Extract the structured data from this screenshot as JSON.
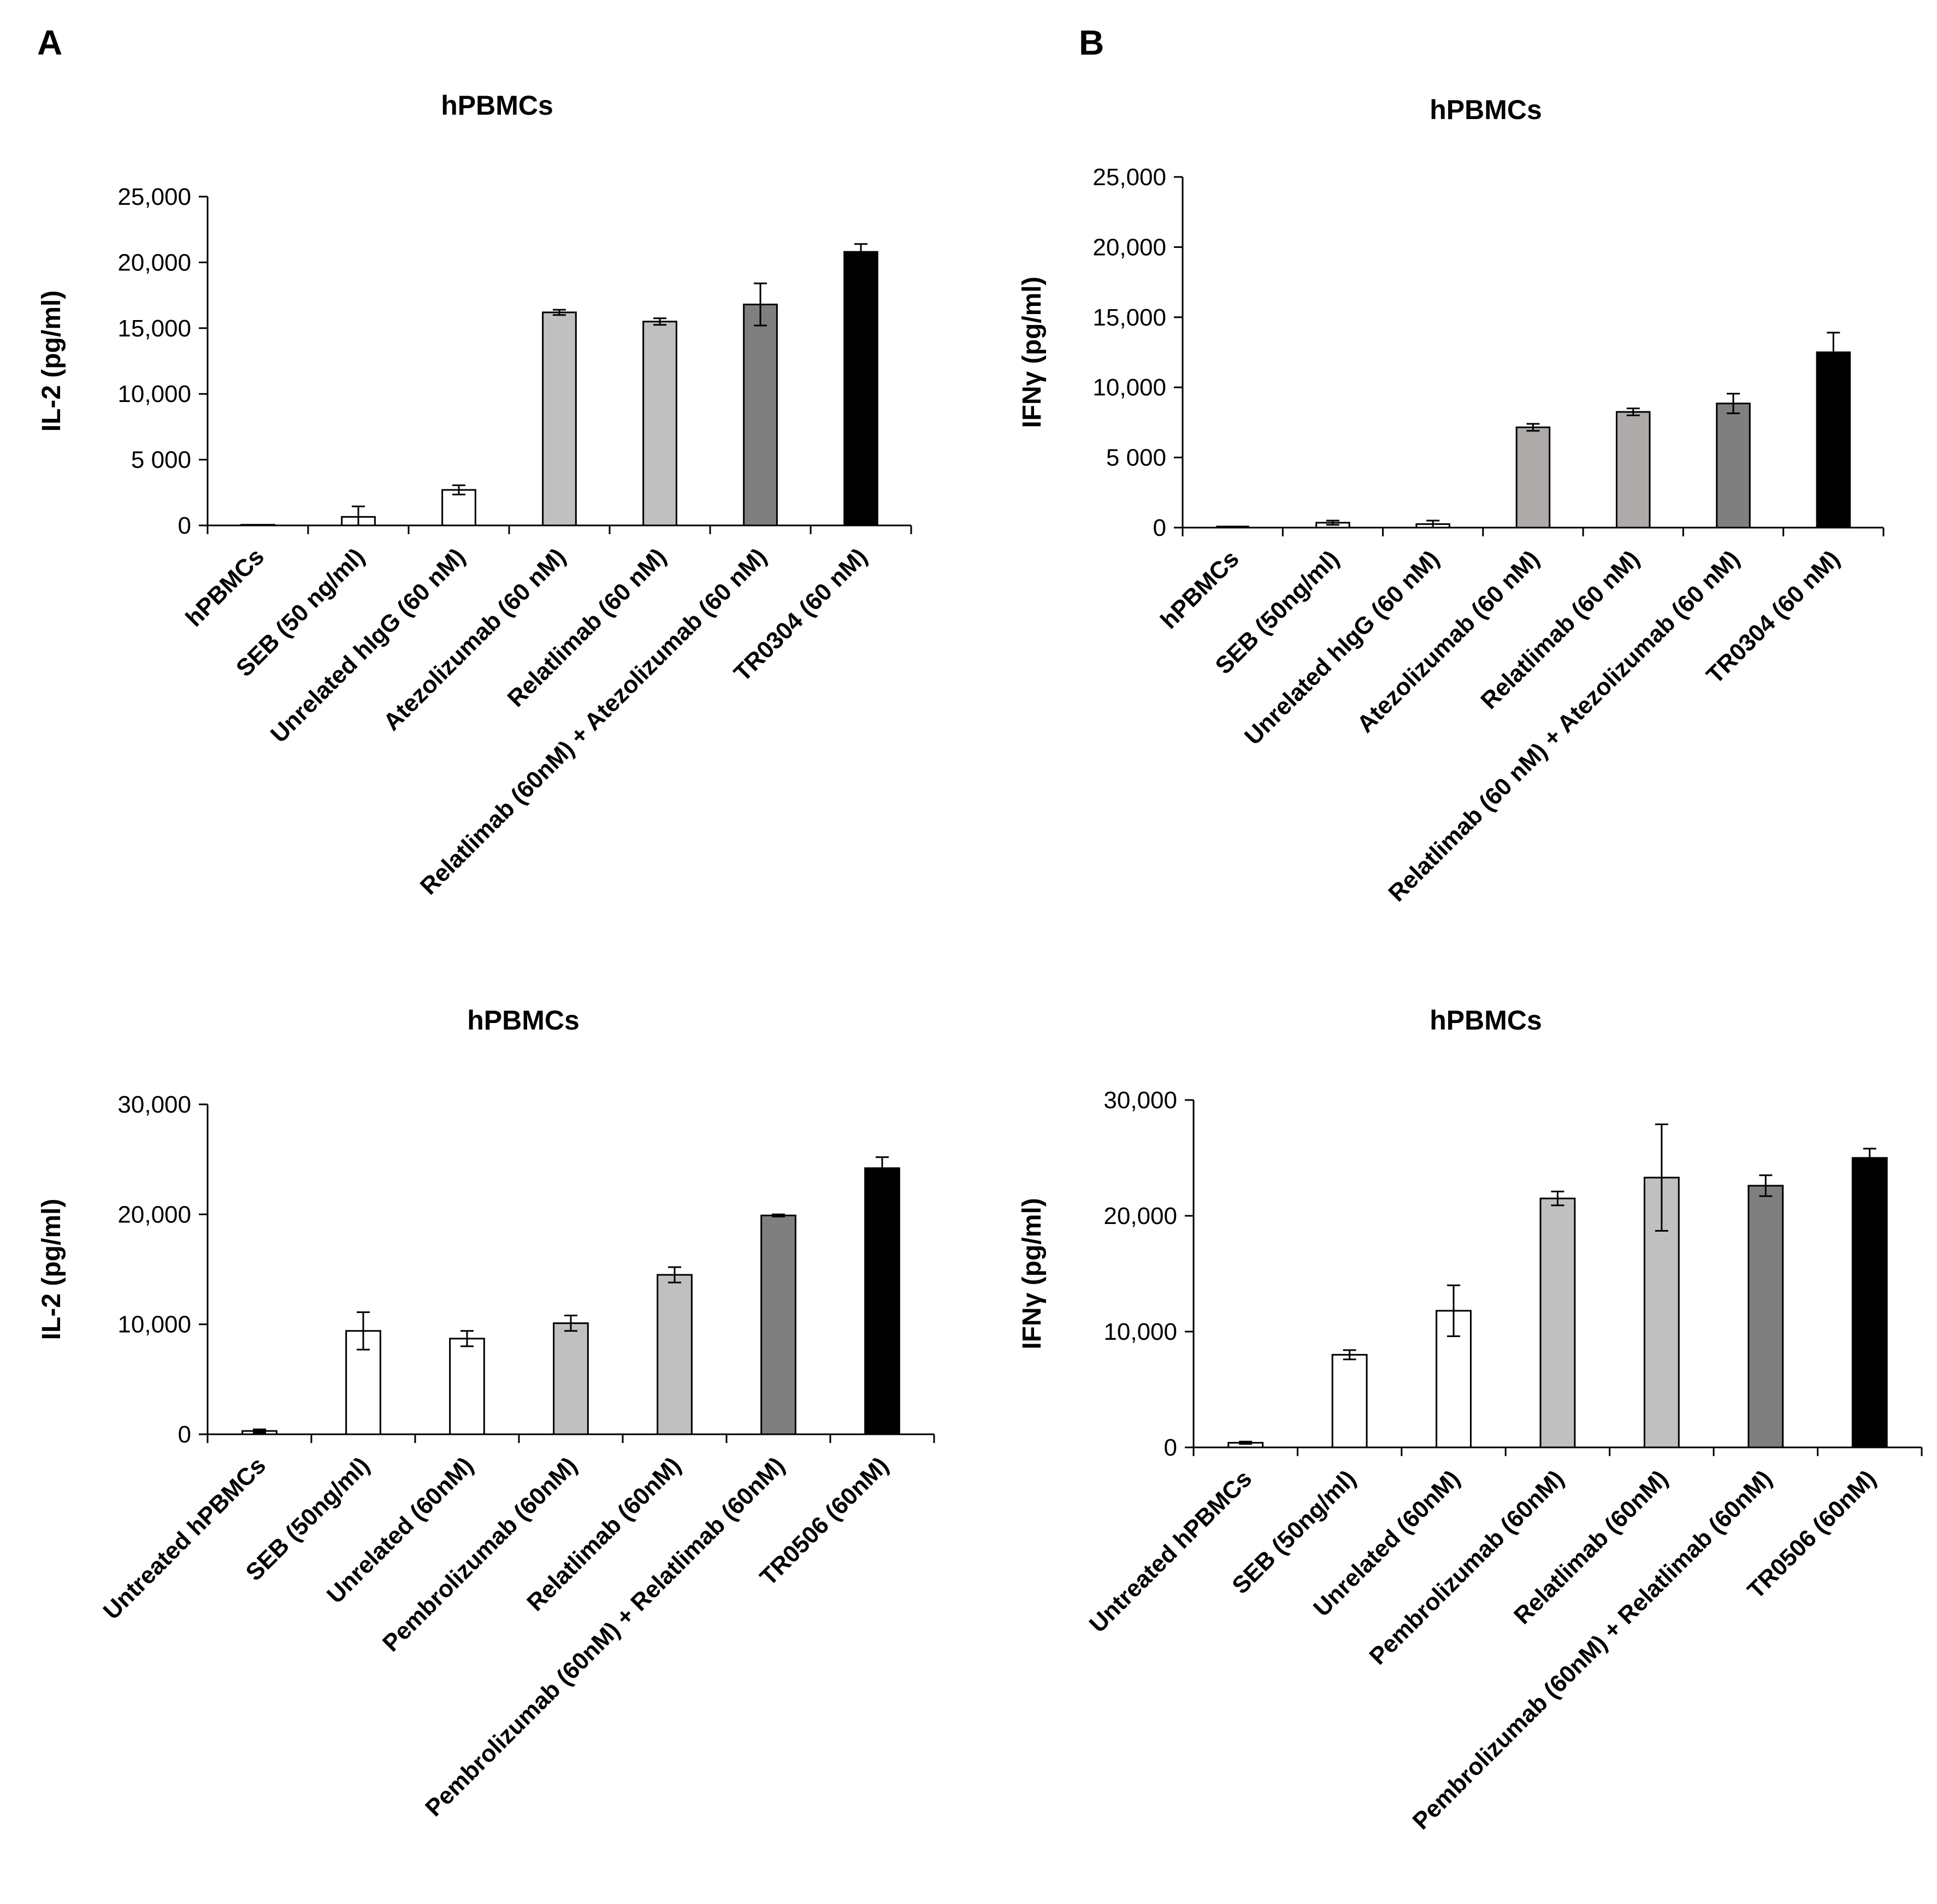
{
  "panels": [
    "A",
    "B"
  ],
  "chart_data": [
    {
      "type": "bar",
      "title": "hPBMCs",
      "xlabel": "",
      "ylabel": "IL-2 (pg/ml)",
      "ylim": [
        0,
        25000
      ],
      "yticks": [
        0,
        5000,
        10000,
        15000,
        20000,
        25000
      ],
      "ytick_labels": [
        "0",
        "5 000",
        "10,000",
        "15,000",
        "20,000",
        "25,000"
      ],
      "categories": [
        "hPBMCs",
        "SEB (50 ng/ml)",
        "Unrelated hIgG (60 nM)",
        "Atezolizumab (60 nM)",
        "Relatlimab (60 nM)",
        "Relatlimab (60nM) + Atezolizumab (60 nM)",
        "TR0304 (60 nM)"
      ],
      "values": [
        50,
        650,
        2700,
        16200,
        15500,
        16800,
        20800
      ],
      "errors": [
        0,
        800,
        350,
        200,
        250,
        1600,
        600
      ],
      "colors": [
        "#ffffff",
        "#ffffff",
        "#ffffff",
        "#c0c0c0",
        "#c0c0c0",
        "#7f7f7f",
        "#000000"
      ]
    },
    {
      "type": "bar",
      "title": "hPBMCs",
      "xlabel": "",
      "ylabel": "IFNγ (pg/ml)",
      "ylim": [
        0,
        25000
      ],
      "yticks": [
        0,
        5000,
        10000,
        15000,
        20000,
        25000
      ],
      "ytick_labels": [
        "0",
        "5 000",
        "10,000",
        "15,000",
        "20,000",
        "25,000"
      ],
      "categories": [
        "hPBMCs",
        "SEB (50ng/ml)",
        "Unrelated hIgG (60 nM)",
        "Atezolizumab (60 nM)",
        "Relatlimab (60 nM)",
        "Relatlimab (60 nM) + Atezolizumab (60 nM)",
        "TR0304 (60 nM)"
      ],
      "values": [
        0,
        350,
        250,
        7150,
        8250,
        8850,
        12500
      ],
      "errors": [
        0,
        150,
        250,
        250,
        250,
        700,
        1400
      ],
      "colors": [
        "#ffffff",
        "#ffffff",
        "#ffffff",
        "#aeaaaa",
        "#aeaaaa",
        "#7f7f7f",
        "#000000"
      ]
    },
    {
      "type": "bar",
      "title": "hPBMCs",
      "xlabel": "",
      "ylabel": "IL-2 (pg/ml)",
      "ylim": [
        0,
        30000
      ],
      "yticks": [
        0,
        10000,
        20000,
        30000
      ],
      "ytick_labels": [
        "0",
        "10,000",
        "20,000",
        "30,000"
      ],
      "categories": [
        "Untreated hPBMCs",
        "SEB (50ng/ml)",
        "Unrelated (60nM)",
        "Pembrolizumab (60nM)",
        "Relatlimab (60nM)",
        "Pembrolizumab (60nM) + Relatlimab (60nM)",
        "TR0506 (60nM)"
      ],
      "values": [
        300,
        9400,
        8700,
        10100,
        14500,
        19900,
        24200
      ],
      "errors": [
        150,
        1700,
        700,
        700,
        700,
        100,
        1000
      ],
      "colors": [
        "#ffffff",
        "#ffffff",
        "#ffffff",
        "#c0c0c0",
        "#c0c0c0",
        "#7f7f7f",
        "#000000"
      ]
    },
    {
      "type": "bar",
      "title": "hPBMCs",
      "xlabel": "",
      "ylabel": "IFNγ (pg/ml)",
      "ylim": [
        0,
        30000
      ],
      "yticks": [
        0,
        10000,
        20000,
        30000
      ],
      "ytick_labels": [
        "0",
        "10,000",
        "20,000",
        "30,000"
      ],
      "categories": [
        "Untreated hPBMCs",
        "SEB (50ng/ml)",
        "Unrelated (60nM)",
        "Pembrolizumab (60nM)",
        "Relatlimab (60nM)",
        "Pembrolizumab (60nM) + Relatlimab (60nM)",
        "TR0506 (60nM)"
      ],
      "values": [
        400,
        8000,
        11800,
        21500,
        23300,
        22600,
        25000
      ],
      "errors": [
        100,
        400,
        2200,
        600,
        4600,
        900,
        800
      ],
      "colors": [
        "#ffffff",
        "#ffffff",
        "#ffffff",
        "#c0c0c0",
        "#c0c0c0",
        "#7f7f7f",
        "#000000"
      ]
    }
  ]
}
